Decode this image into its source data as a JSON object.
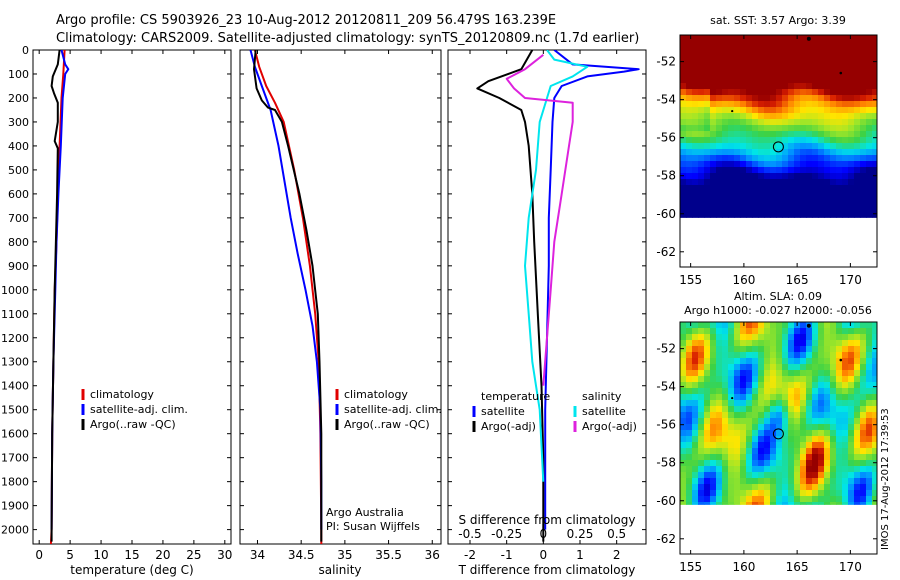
{
  "header": {
    "line1": "Argo profile: CS 5903926_23 10-Aug-2012 20120811_209 56.479S 163.239E",
    "line2": "Climatology: CARS2009. Satellite-adjusted climatology: synTS_20120809.nc (1.7d earlier)"
  },
  "credits": {
    "org": "Argo Australia",
    "pi": "PI: Susan Wijffels",
    "stamp": "IMOS 17-Aug-2012 17:39:53"
  },
  "colors": {
    "climatology": "#e00000",
    "satellite": "#0000ff",
    "argo": "#000000",
    "salinity_sat": "#00e5ee",
    "salinity_argo": "#dd22dd"
  },
  "chart_data": [
    {
      "id": "temperature",
      "type": "line",
      "xlabel": "temperature (deg C)",
      "ylabel": "",
      "xlim": [
        -1,
        31
      ],
      "ylim": [
        2060,
        0
      ],
      "xticks": [
        0,
        5,
        10,
        15,
        20,
        25,
        30
      ],
      "xtick_labels": [
        "0",
        "5",
        "10",
        "15",
        "20",
        "25",
        "30"
      ],
      "yticks": [
        0,
        100,
        200,
        300,
        400,
        500,
        600,
        700,
        800,
        900,
        1000,
        1100,
        1200,
        1300,
        1400,
        1500,
        1600,
        1700,
        1800,
        1900,
        2000
      ],
      "ytick_labels": [
        "0",
        "100",
        "200",
        "300",
        "400",
        "500",
        "600",
        "700",
        "800",
        "900",
        "1000",
        "1100",
        "1200",
        "1300",
        "1400",
        "1500",
        "1600",
        "1700",
        "1800",
        "1900",
        "2000"
      ],
      "legend": [
        "climatology",
        "satellite-adj. clim.",
        "Argo(..raw -QC)"
      ],
      "series": [
        {
          "name": "climatology",
          "color": "#e00000",
          "points": [
            [
              4.1,
              0
            ],
            [
              3.9,
              100
            ],
            [
              3.6,
              200
            ],
            [
              3.3,
              400
            ],
            [
              3.0,
              600
            ],
            [
              2.8,
              800
            ],
            [
              2.5,
              1000
            ],
            [
              2.3,
              1300
            ],
            [
              2.1,
              1600
            ],
            [
              2.0,
              2000
            ],
            [
              1.9,
              2060
            ]
          ]
        },
        {
          "name": "satellite-adj. clim.",
          "color": "#0000ff",
          "points": [
            [
              3.6,
              0
            ],
            [
              4.2,
              60
            ],
            [
              4.7,
              80
            ],
            [
              4.2,
              100
            ],
            [
              3.8,
              200
            ],
            [
              3.5,
              400
            ],
            [
              3.1,
              600
            ],
            [
              2.8,
              800
            ],
            [
              2.6,
              1000
            ],
            [
              2.3,
              1300
            ],
            [
              2.1,
              1600
            ],
            [
              2.0,
              2000
            ]
          ]
        },
        {
          "name": "Argo(..raw -QC)",
          "color": "#000000",
          "points": [
            [
              3.3,
              0
            ],
            [
              3.0,
              60
            ],
            [
              2.2,
              110
            ],
            [
              2.0,
              150
            ],
            [
              2.4,
              180
            ],
            [
              3.0,
              220
            ],
            [
              3.0,
              300
            ],
            [
              2.5,
              380
            ],
            [
              3.0,
              410
            ],
            [
              2.9,
              600
            ],
            [
              2.7,
              800
            ],
            [
              2.5,
              1000
            ],
            [
              2.3,
              1300
            ],
            [
              2.1,
              1600
            ],
            [
              2.0,
              2000
            ],
            [
              2.0,
              2050
            ]
          ]
        }
      ]
    },
    {
      "id": "salinity",
      "type": "line",
      "xlabel": "salinity",
      "ylabel": "",
      "xlim": [
        33.8,
        36.1
      ],
      "ylim": [
        2060,
        0
      ],
      "xticks": [
        34,
        34.5,
        35,
        35.5,
        36
      ],
      "xtick_labels": [
        "34",
        "34.5",
        "35",
        "35.5",
        "36"
      ],
      "legend": [
        "climatology",
        "satellite-adj. clim.",
        "Argo(..raw -QC)"
      ],
      "series": [
        {
          "name": "climatology",
          "color": "#e00000",
          "points": [
            [
              33.97,
              0
            ],
            [
              34.02,
              70
            ],
            [
              34.1,
              150
            ],
            [
              34.2,
              220
            ],
            [
              34.3,
              300
            ],
            [
              34.42,
              500
            ],
            [
              34.52,
              700
            ],
            [
              34.6,
              900
            ],
            [
              34.66,
              1100
            ],
            [
              34.7,
              1300
            ],
            [
              34.72,
              1600
            ],
            [
              34.73,
              2000
            ],
            [
              34.73,
              2060
            ]
          ]
        },
        {
          "name": "satellite-adj. clim.",
          "color": "#0000ff",
          "points": [
            [
              33.92,
              0
            ],
            [
              33.97,
              70
            ],
            [
              34.05,
              150
            ],
            [
              34.15,
              250
            ],
            [
              34.24,
              400
            ],
            [
              34.31,
              550
            ],
            [
              34.38,
              700
            ],
            [
              34.46,
              850
            ],
            [
              34.55,
              1000
            ],
            [
              34.63,
              1150
            ],
            [
              34.68,
              1300
            ],
            [
              34.72,
              1500
            ],
            [
              34.73,
              1800
            ],
            [
              34.73,
              2000
            ]
          ]
        },
        {
          "name": "Argo(..raw -QC)",
          "color": "#000000",
          "points": [
            [
              33.98,
              0
            ],
            [
              33.96,
              80
            ],
            [
              33.99,
              160
            ],
            [
              34.05,
              210
            ],
            [
              34.12,
              240
            ],
            [
              34.2,
              250
            ],
            [
              34.28,
              300
            ],
            [
              34.35,
              400
            ],
            [
              34.48,
              600
            ],
            [
              34.56,
              750
            ],
            [
              34.63,
              900
            ],
            [
              34.69,
              1100
            ],
            [
              34.71,
              1300
            ],
            [
              34.73,
              1600
            ],
            [
              34.73,
              2000
            ],
            [
              34.73,
              2050
            ]
          ]
        }
      ]
    },
    {
      "id": "difference",
      "type": "line",
      "xlabel": "T difference from climatology",
      "x2label": "S difference from climatology",
      "ylabel": "",
      "xlim": [
        -2.6,
        2.8
      ],
      "ylim": [
        2060,
        0
      ],
      "xticks": [
        -2,
        -1,
        0,
        1,
        2
      ],
      "xtick_labels": [
        "-2",
        "-1",
        "0",
        "1",
        "2"
      ],
      "x2_labels": [
        "-0.5",
        "-0.25",
        "0",
        "0.25",
        "0.5"
      ],
      "x2_positions": [
        -2,
        -1,
        0,
        1,
        2
      ],
      "legend_temperature": {
        "heading": "temperature",
        "items": [
          "satellite",
          "Argo(-adj)"
        ]
      },
      "legend_salinity": {
        "heading": "salinity",
        "items": [
          "satellite",
          "Argo(-adj)"
        ]
      },
      "series": [
        {
          "name": "temperature satellite",
          "color": "#0000ff",
          "points": [
            [
              0.3,
              0
            ],
            [
              0.8,
              60
            ],
            [
              2.6,
              80
            ],
            [
              2.2,
              90
            ],
            [
              1.2,
              110
            ],
            [
              0.5,
              150
            ],
            [
              0.3,
              200
            ],
            [
              0.25,
              300
            ],
            [
              0.2,
              500
            ],
            [
              0.15,
              700
            ],
            [
              0.15,
              900
            ],
            [
              0.1,
              1200
            ],
            [
              0.05,
              1500
            ],
            [
              0.05,
              1800
            ],
            [
              0.05,
              2000
            ]
          ]
        },
        {
          "name": "temperature Argo(-adj)",
          "color": "#000000",
          "points": [
            [
              -0.3,
              0
            ],
            [
              -0.6,
              80
            ],
            [
              -1.5,
              130
            ],
            [
              -1.8,
              160
            ],
            [
              -1.2,
              200
            ],
            [
              -0.6,
              250
            ],
            [
              -0.5,
              300
            ],
            [
              -0.4,
              400
            ],
            [
              -0.3,
              600
            ],
            [
              -0.25,
              800
            ],
            [
              -0.15,
              1100
            ],
            [
              -0.05,
              1400
            ],
            [
              0.0,
              1700
            ],
            [
              0.0,
              2000
            ],
            [
              0.0,
              2050
            ]
          ]
        },
        {
          "name": "salinity satellite",
          "color": "#00e5ee",
          "points": [
            [
              0.1,
              0
            ],
            [
              0.3,
              40
            ],
            [
              1.2,
              70
            ],
            [
              0.8,
              110
            ],
            [
              0.2,
              150
            ],
            [
              -0.1,
              300
            ],
            [
              -0.2,
              500
            ],
            [
              -0.4,
              700
            ],
            [
              -0.5,
              900
            ],
            [
              -0.4,
              1100
            ],
            [
              -0.3,
              1300
            ],
            [
              -0.1,
              1500
            ],
            [
              0.0,
              1800
            ]
          ]
        },
        {
          "name": "salinity Argo(-adj)",
          "color": "#dd22dd",
          "points": [
            [
              0.0,
              20
            ],
            [
              -0.5,
              80
            ],
            [
              -1.0,
              120
            ],
            [
              -0.8,
              160
            ],
            [
              -0.5,
              200
            ],
            [
              0.8,
              220
            ],
            [
              0.8,
              300
            ],
            [
              0.7,
              400
            ],
            [
              0.5,
              600
            ],
            [
              0.3,
              800
            ],
            [
              0.2,
              1000
            ],
            [
              0.1,
              1200
            ],
            [
              0.0,
              1400
            ]
          ]
        }
      ]
    },
    {
      "id": "sst_map",
      "type": "heatmap",
      "title": "sat. SST: 3.57  Argo: 3.39",
      "xlim": [
        154,
        172.5
      ],
      "ylim": [
        -62.8,
        -50.6
      ],
      "xticks": [
        155,
        160,
        165,
        170
      ],
      "xtick_labels": [
        "155",
        "160",
        "165",
        "170"
      ],
      "yticks": [
        -52,
        -54,
        -56,
        -58,
        -60,
        -62
      ],
      "ytick_labels": [
        "-52",
        "-54",
        "-56",
        "-58",
        "-60",
        "-62"
      ],
      "data_lat_bottom": -60.2,
      "marker": {
        "lon": 163.24,
        "lat": -56.48
      }
    },
    {
      "id": "sla_map",
      "type": "heatmap",
      "title": "Altim. SLA: 0.09",
      "subtitle": "Argo h1000: -0.027 h2000: -0.056",
      "xlim": [
        154,
        172.5
      ],
      "ylim": [
        -62.8,
        -50.6
      ],
      "xticks": [
        155,
        160,
        165,
        170
      ],
      "xtick_labels": [
        "155",
        "160",
        "165",
        "170"
      ],
      "yticks": [
        -52,
        -54,
        -56,
        -58,
        -60,
        -62
      ],
      "ytick_labels": [
        "-52",
        "-54",
        "-56",
        "-58",
        "-60",
        "-62"
      ],
      "data_lat_bottom": -60.2,
      "marker": {
        "lon": 163.24,
        "lat": -56.48
      }
    }
  ]
}
